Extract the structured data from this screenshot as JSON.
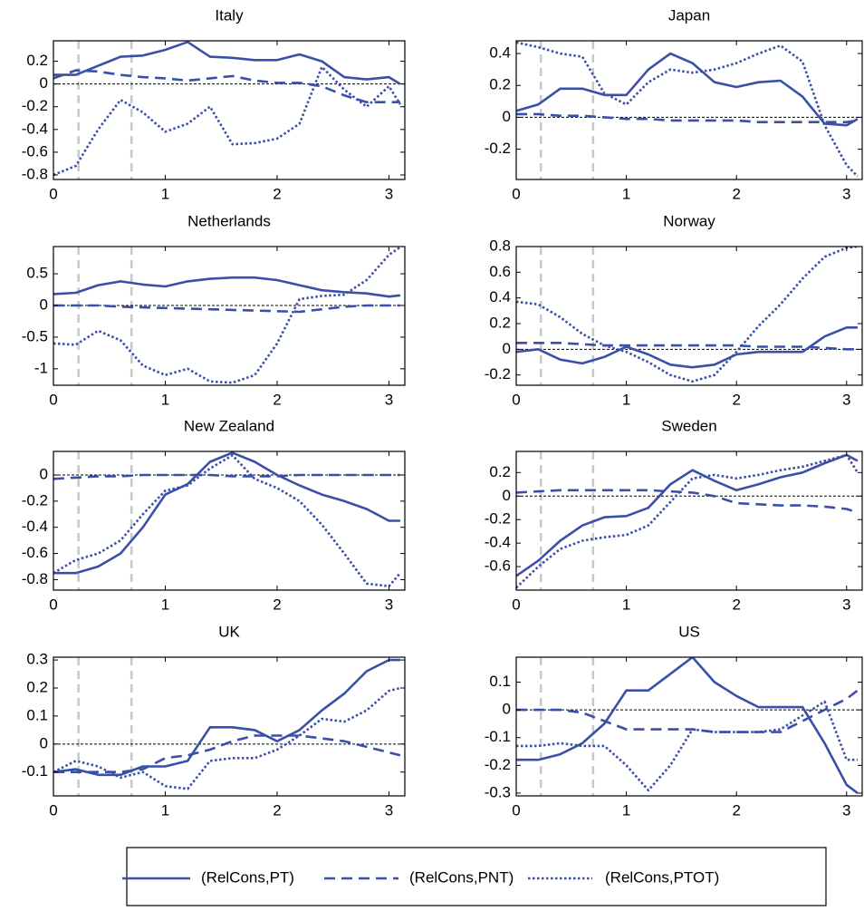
{
  "chart_data": [
    {
      "type": "line",
      "title": "Italy",
      "x": [
        0,
        0.2,
        0.4,
        0.6,
        0.8,
        1.0,
        1.2,
        1.4,
        1.6,
        1.8,
        2.0,
        2.2,
        2.4,
        2.6,
        2.8,
        3.0,
        3.1
      ],
      "xlim": [
        0,
        3.14159
      ],
      "xticks": [
        0,
        1,
        2,
        3
      ],
      "ylim": [
        -0.84,
        0.38
      ],
      "yticks": [
        -0.8,
        -0.6,
        -0.4,
        -0.2,
        0,
        0.2
      ],
      "vlines": [
        0.224,
        0.698
      ],
      "hline": 0,
      "series": [
        {
          "name": "(RelCons,PT)",
          "color": "#3a4fa8",
          "style": "solid",
          "values": [
            0.08,
            0.08,
            0.16,
            0.24,
            0.25,
            0.3,
            0.37,
            0.24,
            0.23,
            0.21,
            0.21,
            0.26,
            0.2,
            0.06,
            0.04,
            0.06,
            0.0
          ]
        },
        {
          "name": "(RelCons,PNT)",
          "color": "#3a4fa8",
          "style": "dashed",
          "values": [
            0.05,
            0.12,
            0.11,
            0.08,
            0.06,
            0.05,
            0.03,
            0.05,
            0.07,
            0.03,
            0.01,
            0.01,
            -0.02,
            -0.1,
            -0.16,
            -0.16,
            -0.16
          ]
        },
        {
          "name": "(RelCons,PTOT)",
          "color": "#3a4fa8",
          "style": "dotted",
          "values": [
            -0.8,
            -0.72,
            -0.4,
            -0.14,
            -0.25,
            -0.42,
            -0.35,
            -0.2,
            -0.53,
            -0.52,
            -0.48,
            -0.35,
            0.15,
            -0.05,
            -0.2,
            -0.02,
            -0.18
          ]
        }
      ]
    },
    {
      "type": "line",
      "title": "Japan",
      "x": [
        0,
        0.2,
        0.4,
        0.6,
        0.8,
        1.0,
        1.2,
        1.4,
        1.6,
        1.8,
        2.0,
        2.2,
        2.4,
        2.6,
        2.8,
        3.0,
        3.1
      ],
      "xlim": [
        0,
        3.14159
      ],
      "xticks": [
        0,
        1,
        2,
        3
      ],
      "ylim": [
        -0.39,
        0.48
      ],
      "yticks": [
        -0.2,
        0,
        0.2,
        0.4
      ],
      "vlines": [
        0.224,
        0.698
      ],
      "hline": 0,
      "series": [
        {
          "name": "(RelCons,PT)",
          "color": "#3a4fa8",
          "style": "solid",
          "values": [
            0.04,
            0.08,
            0.18,
            0.18,
            0.14,
            0.14,
            0.3,
            0.4,
            0.34,
            0.22,
            0.19,
            0.22,
            0.23,
            0.13,
            -0.04,
            -0.05,
            -0.01
          ]
        },
        {
          "name": "(RelCons,PNT)",
          "color": "#3a4fa8",
          "style": "dashed",
          "values": [
            0.02,
            0.02,
            0.01,
            0.01,
            0.0,
            -0.01,
            -0.01,
            -0.02,
            -0.02,
            -0.02,
            -0.02,
            -0.03,
            -0.03,
            -0.03,
            -0.03,
            -0.03,
            -0.02
          ]
        },
        {
          "name": "(RelCons,PTOT)",
          "color": "#3a4fa8",
          "style": "dotted",
          "values": [
            0.47,
            0.44,
            0.4,
            0.38,
            0.15,
            0.08,
            0.22,
            0.3,
            0.28,
            0.3,
            0.34,
            0.4,
            0.45,
            0.35,
            -0.05,
            -0.3,
            -0.37
          ]
        }
      ]
    },
    {
      "type": "line",
      "title": "Netherlands",
      "x": [
        0,
        0.2,
        0.4,
        0.6,
        0.8,
        1.0,
        1.2,
        1.4,
        1.6,
        1.8,
        2.0,
        2.2,
        2.4,
        2.6,
        2.8,
        3.0,
        3.1
      ],
      "xlim": [
        0,
        3.14159
      ],
      "xticks": [
        0,
        1,
        2,
        3
      ],
      "ylim": [
        -1.26,
        0.93
      ],
      "yticks": [
        -1,
        -0.5,
        0,
        0.5
      ],
      "vlines": [
        0.224,
        0.698
      ],
      "hline": 0,
      "series": [
        {
          "name": "(RelCons,PT)",
          "color": "#3a4fa8",
          "style": "solid",
          "values": [
            0.18,
            0.2,
            0.32,
            0.38,
            0.33,
            0.3,
            0.38,
            0.42,
            0.44,
            0.44,
            0.4,
            0.32,
            0.24,
            0.21,
            0.19,
            0.14,
            0.16
          ]
        },
        {
          "name": "(RelCons,PNT)",
          "color": "#3a4fa8",
          "style": "dashed",
          "values": [
            0,
            0,
            0,
            -0.02,
            -0.03,
            -0.04,
            -0.05,
            -0.06,
            -0.07,
            -0.08,
            -0.09,
            -0.1,
            -0.06,
            -0.02,
            0,
            0,
            0
          ]
        },
        {
          "name": "(RelCons,PTOT)",
          "color": "#3a4fa8",
          "style": "dotted",
          "values": [
            -0.6,
            -0.62,
            -0.4,
            -0.55,
            -0.95,
            -1.1,
            -1.0,
            -1.2,
            -1.22,
            -1.1,
            -0.6,
            0.1,
            0.15,
            0.17,
            0.4,
            0.8,
            0.92
          ]
        }
      ]
    },
    {
      "type": "line",
      "title": "Norway",
      "x": [
        0,
        0.2,
        0.4,
        0.6,
        0.8,
        1.0,
        1.2,
        1.4,
        1.6,
        1.8,
        2.0,
        2.2,
        2.4,
        2.6,
        2.8,
        3.0,
        3.1
      ],
      "xlim": [
        0,
        3.14159
      ],
      "xticks": [
        0,
        1,
        2,
        3
      ],
      "ylim": [
        -0.28,
        0.8
      ],
      "yticks": [
        -0.2,
        0,
        0.2,
        0.4,
        0.6,
        0.8
      ],
      "vlines": [
        0.224,
        0.698
      ],
      "hline": 0,
      "series": [
        {
          "name": "(RelCons,PT)",
          "color": "#3a4fa8",
          "style": "solid",
          "values": [
            -0.02,
            0.0,
            -0.08,
            -0.11,
            -0.06,
            0.02,
            -0.04,
            -0.12,
            -0.14,
            -0.12,
            -0.04,
            -0.02,
            -0.02,
            -0.02,
            0.1,
            0.17,
            0.17
          ]
        },
        {
          "name": "(RelCons,PNT)",
          "color": "#3a4fa8",
          "style": "dashed",
          "values": [
            0.05,
            0.05,
            0.05,
            0.04,
            0.03,
            0.03,
            0.03,
            0.03,
            0.03,
            0.03,
            0.03,
            0.02,
            0.02,
            0.02,
            0.01,
            0,
            0
          ]
        },
        {
          "name": "(RelCons,PTOT)",
          "color": "#3a4fa8",
          "style": "dotted",
          "values": [
            0.37,
            0.35,
            0.25,
            0.12,
            0.03,
            -0.02,
            -0.1,
            -0.2,
            -0.25,
            -0.2,
            -0.02,
            0.18,
            0.35,
            0.55,
            0.72,
            0.79,
            0.8
          ]
        }
      ]
    },
    {
      "type": "line",
      "title": "New Zealand",
      "x": [
        0,
        0.2,
        0.4,
        0.6,
        0.8,
        1.0,
        1.2,
        1.4,
        1.6,
        1.8,
        2.0,
        2.2,
        2.4,
        2.6,
        2.8,
        3.0,
        3.1
      ],
      "xlim": [
        0,
        3.14159
      ],
      "xticks": [
        0,
        1,
        2,
        3
      ],
      "ylim": [
        -0.88,
        0.18
      ],
      "yticks": [
        -0.8,
        -0.6,
        -0.4,
        -0.2,
        0
      ],
      "vlines": [
        0.224,
        0.698
      ],
      "hline": 0,
      "series": [
        {
          "name": "(RelCons,PT)",
          "color": "#3a4fa8",
          "style": "solid",
          "values": [
            -0.75,
            -0.75,
            -0.7,
            -0.6,
            -0.4,
            -0.15,
            -0.07,
            0.1,
            0.17,
            0.1,
            0.0,
            -0.08,
            -0.15,
            -0.2,
            -0.26,
            -0.35,
            -0.35
          ]
        },
        {
          "name": "(RelCons,PNT)",
          "color": "#3a4fa8",
          "style": "dashed",
          "values": [
            -0.03,
            -0.02,
            -0.01,
            -0.01,
            0,
            0,
            0,
            0,
            -0.01,
            -0.01,
            -0.01,
            0,
            0,
            0,
            0,
            0,
            0
          ]
        },
        {
          "name": "(RelCons,PTOT)",
          "color": "#3a4fa8",
          "style": "dotted",
          "values": [
            -0.75,
            -0.65,
            -0.6,
            -0.5,
            -0.3,
            -0.12,
            -0.08,
            0.05,
            0.15,
            -0.03,
            -0.1,
            -0.2,
            -0.38,
            -0.6,
            -0.83,
            -0.85,
            -0.75
          ]
        }
      ]
    },
    {
      "type": "line",
      "title": "Sweden",
      "x": [
        0,
        0.2,
        0.4,
        0.6,
        0.8,
        1.0,
        1.2,
        1.4,
        1.6,
        1.8,
        2.0,
        2.2,
        2.4,
        2.6,
        2.8,
        3.0,
        3.1
      ],
      "xlim": [
        0,
        3.14159
      ],
      "xticks": [
        0,
        1,
        2,
        3
      ],
      "ylim": [
        -0.8,
        0.38
      ],
      "yticks": [
        -0.6,
        -0.4,
        -0.2,
        0,
        0.2
      ],
      "vlines": [
        0.224,
        0.698
      ],
      "hline": 0,
      "series": [
        {
          "name": "(RelCons,PT)",
          "color": "#3a4fa8",
          "style": "solid",
          "values": [
            -0.68,
            -0.55,
            -0.38,
            -0.25,
            -0.18,
            -0.17,
            -0.1,
            0.1,
            0.22,
            0.13,
            0.05,
            0.1,
            0.16,
            0.2,
            0.28,
            0.35,
            0.3
          ]
        },
        {
          "name": "(RelCons,PNT)",
          "color": "#3a4fa8",
          "style": "dashed",
          "values": [
            0.03,
            0.04,
            0.05,
            0.05,
            0.05,
            0.05,
            0.05,
            0.04,
            0.03,
            0.0,
            -0.06,
            -0.07,
            -0.08,
            -0.08,
            -0.09,
            -0.11,
            -0.14
          ]
        },
        {
          "name": "(RelCons,PTOT)",
          "color": "#3a4fa8",
          "style": "dotted",
          "values": [
            -0.78,
            -0.6,
            -0.45,
            -0.38,
            -0.35,
            -0.33,
            -0.25,
            -0.05,
            0.15,
            0.18,
            0.15,
            0.18,
            0.22,
            0.25,
            0.3,
            0.35,
            0.2
          ]
        }
      ]
    },
    {
      "type": "line",
      "title": "UK",
      "x": [
        0,
        0.2,
        0.4,
        0.6,
        0.8,
        1.0,
        1.2,
        1.4,
        1.6,
        1.8,
        2.0,
        2.2,
        2.4,
        2.6,
        2.8,
        3.0,
        3.1
      ],
      "xlim": [
        0,
        3.14159
      ],
      "xticks": [
        0,
        1,
        2,
        3
      ],
      "ylim": [
        -0.185,
        0.31
      ],
      "yticks": [
        -0.1,
        0,
        0.1,
        0.2,
        0.3
      ],
      "vlines": [
        0.224,
        0.698
      ],
      "hline": 0,
      "series": [
        {
          "name": "(RelCons,PT)",
          "color": "#3a4fa8",
          "style": "solid",
          "values": [
            -0.1,
            -0.09,
            -0.11,
            -0.11,
            -0.08,
            -0.08,
            -0.06,
            0.06,
            0.06,
            0.05,
            0.01,
            0.05,
            0.12,
            0.18,
            0.26,
            0.3,
            0.3
          ]
        },
        {
          "name": "(RelCons,PNT)",
          "color": "#3a4fa8",
          "style": "dashed",
          "values": [
            -0.1,
            -0.1,
            -0.1,
            -0.1,
            -0.09,
            -0.05,
            -0.04,
            -0.02,
            0.01,
            0.03,
            0.03,
            0.03,
            0.02,
            0.01,
            -0.01,
            -0.03,
            -0.04
          ]
        },
        {
          "name": "(RelCons,PTOT)",
          "color": "#3a4fa8",
          "style": "dotted",
          "values": [
            -0.1,
            -0.06,
            -0.08,
            -0.12,
            -0.1,
            -0.15,
            -0.16,
            -0.06,
            -0.05,
            -0.05,
            -0.02,
            0.03,
            0.09,
            0.08,
            0.12,
            0.19,
            0.2
          ]
        }
      ]
    },
    {
      "type": "line",
      "title": "US",
      "x": [
        0,
        0.2,
        0.4,
        0.6,
        0.8,
        1.0,
        1.2,
        1.4,
        1.6,
        1.8,
        2.0,
        2.2,
        2.4,
        2.6,
        2.8,
        3.0,
        3.1
      ],
      "xlim": [
        0,
        3.14159
      ],
      "xticks": [
        0,
        1,
        2,
        3
      ],
      "ylim": [
        -0.31,
        0.19
      ],
      "yticks": [
        -0.3,
        -0.2,
        -0.1,
        0,
        0.1
      ],
      "vlines": [
        0.224,
        0.698
      ],
      "hline": 0,
      "series": [
        {
          "name": "(RelCons,PT)",
          "color": "#3a4fa8",
          "style": "solid",
          "values": [
            -0.18,
            -0.18,
            -0.16,
            -0.12,
            -0.05,
            0.07,
            0.07,
            0.13,
            0.19,
            0.1,
            0.05,
            0.01,
            0.01,
            0.01,
            -0.12,
            -0.27,
            -0.3
          ]
        },
        {
          "name": "(RelCons,PNT)",
          "color": "#3a4fa8",
          "style": "dashed",
          "values": [
            0,
            0,
            0,
            -0.01,
            -0.04,
            -0.07,
            -0.07,
            -0.07,
            -0.07,
            -0.08,
            -0.08,
            -0.08,
            -0.08,
            -0.04,
            0.0,
            0.04,
            0.07
          ]
        },
        {
          "name": "(RelCons,PTOT)",
          "color": "#3a4fa8",
          "style": "dotted",
          "values": [
            -0.13,
            -0.13,
            -0.12,
            -0.13,
            -0.13,
            -0.2,
            -0.29,
            -0.2,
            -0.07,
            -0.08,
            -0.08,
            -0.08,
            -0.07,
            -0.02,
            0.03,
            -0.18,
            -0.18
          ]
        }
      ]
    }
  ]
}
